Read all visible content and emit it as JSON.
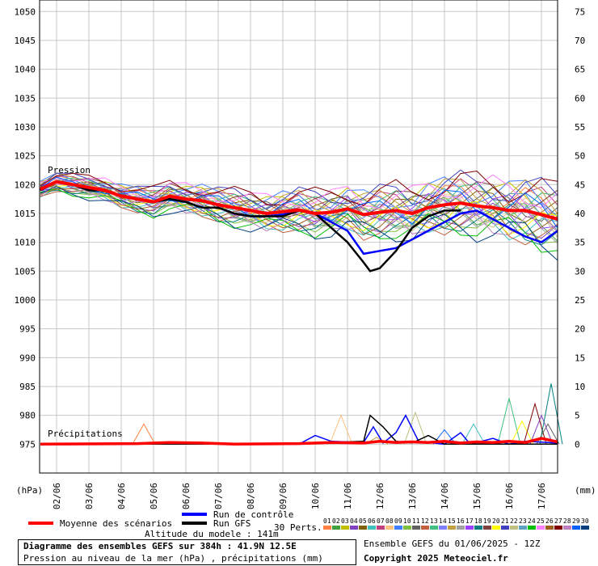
{
  "chart_data": {
    "type": "line",
    "title": "Diagramme des ensembles GEFS sur 384h : 41.9N 12.5E",
    "subtitle": "Pression au niveau de la mer (hPa) , précipitations (mm)",
    "left_axis": {
      "unit": "(hPa)",
      "ticks": [
        975,
        980,
        985,
        990,
        995,
        1000,
        1005,
        1010,
        1015,
        1020,
        1025,
        1030,
        1035,
        1040,
        1045,
        1050
      ],
      "range": [
        970,
        1052
      ]
    },
    "right_axis": {
      "unit": "(mm)",
      "ticks": [
        0,
        5,
        10,
        15,
        20,
        25,
        30,
        35,
        40,
        45,
        50,
        55,
        60,
        65,
        70,
        75
      ],
      "range": [
        -5,
        77
      ]
    },
    "x_ticks": [
      "02/06",
      "03/06",
      "04/06",
      "05/06",
      "06/06",
      "07/06",
      "08/06",
      "09/06",
      "10/06",
      "11/06",
      "12/06",
      "13/06",
      "14/06",
      "15/06",
      "16/06",
      "17/06"
    ],
    "x_range_days": [
      0,
      16
    ],
    "pressure_label": "Pression",
    "precip_label": "Précipitations",
    "mean_pressure": {
      "name": "Moyenne des scénarios",
      "color": "#ff0000",
      "points": [
        [
          0,
          1019.2
        ],
        [
          0.5,
          1020.5
        ],
        [
          1,
          1020
        ],
        [
          1.5,
          1019.5
        ],
        [
          2,
          1019
        ],
        [
          2.5,
          1018
        ],
        [
          3,
          1017.5
        ],
        [
          3.5,
          1017
        ],
        [
          4,
          1018
        ],
        [
          4.5,
          1017.5
        ],
        [
          5,
          1017.2
        ],
        [
          5.5,
          1016.5
        ],
        [
          6,
          1016
        ],
        [
          6.5,
          1015.5
        ],
        [
          7,
          1015
        ],
        [
          7.5,
          1015.3
        ],
        [
          8,
          1015.6
        ],
        [
          8.5,
          1015
        ],
        [
          9,
          1015.2
        ],
        [
          9.5,
          1015.8
        ],
        [
          10,
          1014.8
        ],
        [
          10.5,
          1015.2
        ],
        [
          11,
          1015.5
        ],
        [
          11.5,
          1015
        ],
        [
          12,
          1016
        ],
        [
          12.5,
          1016.5
        ],
        [
          13,
          1016.8
        ],
        [
          13.5,
          1016.3
        ],
        [
          14,
          1016
        ],
        [
          14.5,
          1015.5
        ],
        [
          15,
          1015.5
        ],
        [
          15.5,
          1014.8
        ],
        [
          16,
          1014
        ]
      ]
    },
    "control_pressure": {
      "name": "Run de contrôle",
      "color": "#0000ff",
      "points": [
        [
          0,
          1019
        ],
        [
          0.5,
          1020.5
        ],
        [
          1,
          1020
        ],
        [
          1.5,
          1019
        ],
        [
          2,
          1019
        ],
        [
          2.5,
          1018
        ],
        [
          3,
          1017.5
        ],
        [
          3.5,
          1017
        ],
        [
          4,
          1017.5
        ],
        [
          4.5,
          1017
        ],
        [
          5,
          1016
        ],
        [
          5.5,
          1016
        ],
        [
          6,
          1015
        ],
        [
          6.5,
          1014.5
        ],
        [
          7,
          1014.5
        ],
        [
          7.5,
          1014.8
        ],
        [
          8,
          1015.5
        ],
        [
          8.5,
          1015
        ],
        [
          9,
          1013.5
        ],
        [
          9.5,
          1012
        ],
        [
          10,
          1008
        ],
        [
          10.5,
          1008.5
        ],
        [
          11,
          1009
        ],
        [
          11.5,
          1010.5
        ],
        [
          12,
          1012
        ],
        [
          12.5,
          1013.5
        ],
        [
          13,
          1015
        ],
        [
          13.5,
          1015.5
        ],
        [
          14,
          1014
        ],
        [
          14.5,
          1012.5
        ],
        [
          15,
          1011
        ],
        [
          15.5,
          1010
        ],
        [
          16,
          1012
        ]
      ]
    },
    "gfs_pressure": {
      "name": "Run GFS",
      "color": "#000000",
      "points": [
        [
          0,
          1019
        ],
        [
          0.5,
          1020.5
        ],
        [
          1,
          1020
        ],
        [
          1.5,
          1019
        ],
        [
          2,
          1019
        ],
        [
          2.5,
          1018
        ],
        [
          3,
          1017.5
        ],
        [
          3.5,
          1017
        ],
        [
          4,
          1017.5
        ],
        [
          4.5,
          1017
        ],
        [
          5,
          1016
        ],
        [
          5.5,
          1016
        ],
        [
          6,
          1015
        ],
        [
          6.5,
          1014.5
        ],
        [
          7,
          1014.5
        ],
        [
          7.5,
          1014.5
        ],
        [
          8,
          1015.5
        ],
        [
          8.5,
          1015
        ],
        [
          9,
          1012.5
        ],
        [
          9.5,
          1010
        ],
        [
          10,
          1006.5
        ],
        [
          10.2,
          1005
        ],
        [
          10.5,
          1005.5
        ],
        [
          11,
          1008.5
        ],
        [
          11.5,
          1012.5
        ],
        [
          12,
          1014.5
        ],
        [
          12.5,
          1015.5
        ],
        [
          13,
          1015.5
        ]
      ]
    },
    "perturbation_count_label": "30 Perts.",
    "perturbations": {
      "labels": [
        "01",
        "02",
        "03",
        "04",
        "05",
        "06",
        "07",
        "08",
        "09",
        "10",
        "11",
        "12",
        "13",
        "14",
        "15",
        "16",
        "17",
        "18",
        "19",
        "20",
        "21",
        "22",
        "23",
        "24",
        "25",
        "26",
        "27",
        "28",
        "29",
        "30"
      ],
      "colors": [
        "#ff8040",
        "#40a040",
        "#c0c000",
        "#8040c0",
        "#806000",
        "#40c0c0",
        "#c04080",
        "#ffc080",
        "#4080ff",
        "#80c040",
        "#606060",
        "#c06040",
        "#40c080",
        "#8080ff",
        "#c0a040",
        "#a0a0a0",
        "#a040ff",
        "#008080",
        "#804040",
        "#ffff00",
        "#4040c0",
        "#c0c080",
        "#60a0c0",
        "#00c000",
        "#ff80ff",
        "#a06020",
        "#800000",
        "#c080c0",
        "#0060ff",
        "#004080"
      ],
      "offsets": [
        1.2,
        -0.8,
        2,
        -1.5,
        0.5,
        -2.2,
        1.7,
        -0.3,
        2.6,
        -1.9,
        0.9,
        -2.8,
        1.4,
        -0.6,
        2.3,
        -1.1,
        0.2,
        -2.5,
        1.9,
        -1.4,
        3.1,
        -0.9,
        0.7,
        -3.2,
        2.8,
        -1.7,
        3.4,
        -2,
        0.4,
        -3.5
      ]
    },
    "mean_precip": [
      [
        0,
        0
      ],
      [
        3,
        0.1
      ],
      [
        4,
        0.3
      ],
      [
        5,
        0.2
      ],
      [
        6,
        0
      ],
      [
        8,
        0.1
      ],
      [
        9,
        0.3
      ],
      [
        10,
        0.2
      ],
      [
        10.5,
        0.5
      ],
      [
        11,
        0.3
      ],
      [
        11.5,
        0.4
      ],
      [
        12,
        0.3
      ],
      [
        12.5,
        0.5
      ],
      [
        13,
        0.2
      ],
      [
        13.5,
        0.4
      ],
      [
        14,
        0.3
      ],
      [
        14.5,
        0.5
      ],
      [
        15,
        0.3
      ],
      [
        15.5,
        1
      ],
      [
        16,
        0.4
      ]
    ],
    "control_precip": [
      [
        0,
        0
      ],
      [
        3,
        0
      ],
      [
        3.5,
        0.3
      ],
      [
        4,
        0
      ],
      [
        8,
        0
      ],
      [
        8.5,
        1.5
      ],
      [
        9,
        0.5
      ],
      [
        10,
        0.3
      ],
      [
        10.3,
        3
      ],
      [
        10.6,
        0.2
      ],
      [
        11,
        2
      ],
      [
        11.3,
        5
      ],
      [
        11.7,
        0.5
      ],
      [
        12,
        0.3
      ],
      [
        12.5,
        0
      ],
      [
        13,
        2
      ],
      [
        13.3,
        0
      ],
      [
        14,
        1
      ],
      [
        14.5,
        0
      ],
      [
        15,
        0.5
      ],
      [
        16,
        0.2
      ]
    ],
    "gfs_precip": [
      [
        0,
        0
      ],
      [
        8,
        0
      ],
      [
        9,
        0.3
      ],
      [
        10,
        0.5
      ],
      [
        10.2,
        5
      ],
      [
        10.6,
        3
      ],
      [
        11,
        0.5
      ],
      [
        11.5,
        0.2
      ],
      [
        12,
        1.5
      ],
      [
        12.5,
        0
      ],
      [
        16,
        0
      ]
    ],
    "perturbation_precip_peaks": [
      [
        3.2,
        3.5
      ],
      [
        9.3,
        5
      ],
      [
        10.4,
        1.2
      ],
      [
        11.6,
        5.5
      ],
      [
        12.5,
        2.5
      ],
      [
        13.4,
        3.5
      ],
      [
        14.5,
        8
      ],
      [
        14.9,
        4
      ],
      [
        15.3,
        7
      ],
      [
        15.5,
        5
      ],
      [
        15.7,
        3.5
      ],
      [
        15.8,
        10.5
      ]
    ]
  },
  "legend": {
    "mean_label": "Moyenne des scénarios",
    "control_label": "Run de contrôle",
    "gfs_label": "Run GFS"
  },
  "footer": {
    "altitude": "Altitude du modele : 141m",
    "ensemble_run": "Ensemble GEFS du 01/06/2025 - 12Z",
    "copyright": "Copyright 2025 Meteociel.fr"
  }
}
